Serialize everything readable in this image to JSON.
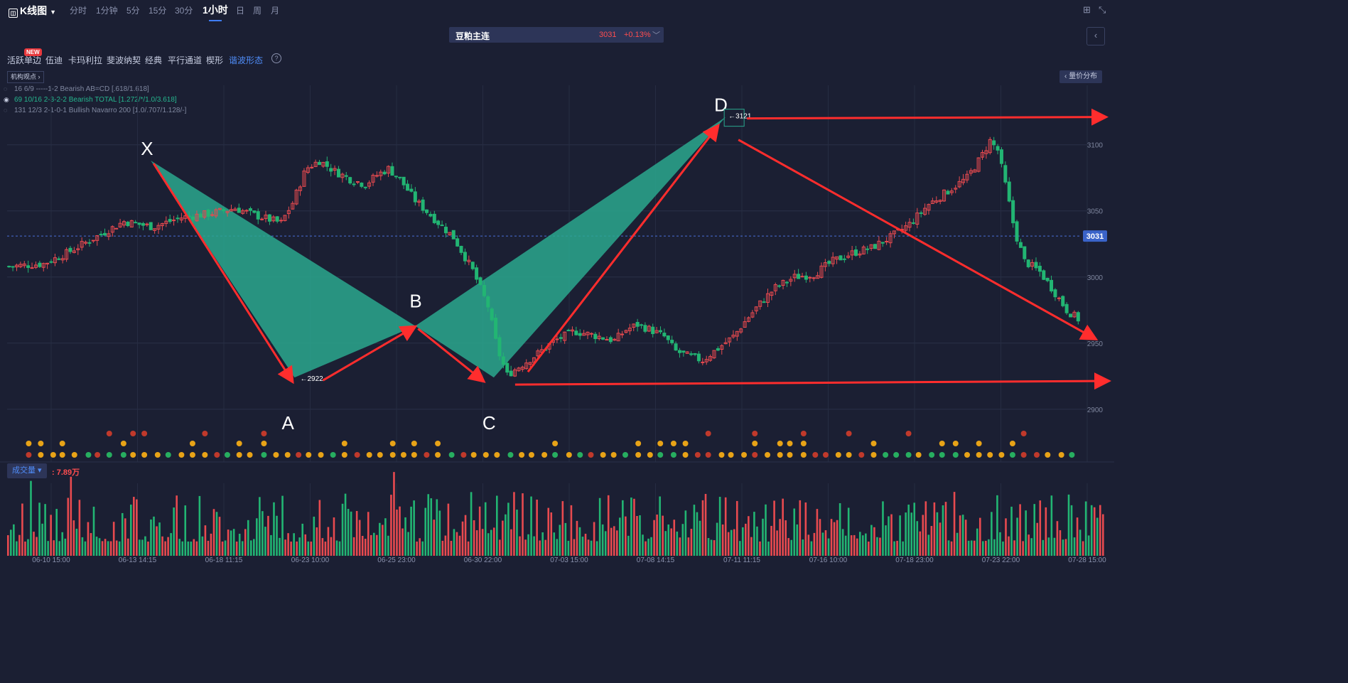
{
  "toolbar": {
    "title": "K线图",
    "timeframes": [
      "分时",
      "1分钟",
      "5分",
      "15分",
      "30分",
      "1小时",
      "日",
      "周",
      "月"
    ]
  },
  "symbol": {
    "name": "豆粕主连",
    "price": "3031",
    "change": "+0.13%"
  },
  "tools": {
    "items": [
      "活跃单边",
      "伍迪",
      "卡玛利拉",
      "斐波纳契",
      "经典",
      "平行通道",
      "楔形",
      "谐波形态"
    ],
    "new_badge": "NEW",
    "help": "?"
  },
  "jigou": "机构观点",
  "price_distribution": "量价分布",
  "patterns": [
    "16 6/9 -----1-2 Bearish AB=CD [.618/1.618]",
    "69 10/16 2-3-2-2 Bearish TOTAL [1.272/*/1.0/3.618]",
    "131 12/3 2-1-0-1 Bullish Navarro 200 [1.0/.707/1.128/-]"
  ],
  "volume": {
    "label": "成交量",
    "value": ": 7.89万"
  },
  "colors": {
    "up": "#e84a4f",
    "down": "#22b573",
    "pattern_fill": "#2aa88e",
    "arrow": "#ff2d2d",
    "background": "#1b1f33"
  },
  "chart_data": {
    "type": "candlestick",
    "xlabels": [
      "06-10 15:00",
      "06-13 14:15",
      "06-18 11:15",
      "06-23 10:00",
      "06-25 23:00",
      "06-30 22:00",
      "07-03 15:00",
      "07-08 14:15",
      "07-11 11:15",
      "07-16 10:00",
      "07-18 23:00",
      "07-23 22:00",
      "07-28 15:00"
    ],
    "y_ticks": [
      2900,
      2950,
      3000,
      3050,
      3100
    ],
    "ylim": [
      2887,
      3145
    ],
    "current_price": 3031,
    "close_path": [
      [
        0,
        3008
      ],
      [
        18,
        3010
      ],
      [
        30,
        3018
      ],
      [
        45,
        3030
      ],
      [
        60,
        3042
      ],
      [
        75,
        3038
      ],
      [
        90,
        3045
      ],
      [
        105,
        3048
      ],
      [
        118,
        3052
      ],
      [
        130,
        3046
      ],
      [
        142,
        3041
      ],
      [
        148,
        3056
      ],
      [
        155,
        3082
      ],
      [
        162,
        3088
      ],
      [
        170,
        3080
      ],
      [
        178,
        3074
      ],
      [
        186,
        3070
      ],
      [
        192,
        3077
      ],
      [
        198,
        3082
      ],
      [
        204,
        3074
      ],
      [
        212,
        3058
      ],
      [
        222,
        3044
      ],
      [
        232,
        3030
      ],
      [
        242,
        3005
      ],
      [
        250,
        2978
      ],
      [
        255,
        2945
      ],
      [
        260,
        2926
      ],
      [
        266,
        2932
      ],
      [
        275,
        2941
      ],
      [
        285,
        2952
      ],
      [
        295,
        2959
      ],
      [
        305,
        2956
      ],
      [
        316,
        2952
      ],
      [
        322,
        2960
      ],
      [
        328,
        2964
      ],
      [
        335,
        2960
      ],
      [
        342,
        2955
      ],
      [
        348,
        2944
      ],
      [
        355,
        2940
      ],
      [
        362,
        2937
      ],
      [
        370,
        2946
      ],
      [
        378,
        2955
      ],
      [
        385,
        2968
      ],
      [
        392,
        2980
      ],
      [
        400,
        2992
      ],
      [
        410,
        3000
      ],
      [
        420,
        3002
      ],
      [
        430,
        3012
      ],
      [
        440,
        3018
      ],
      [
        450,
        3022
      ],
      [
        460,
        3030
      ],
      [
        470,
        3040
      ],
      [
        480,
        3055
      ],
      [
        490,
        3065
      ],
      [
        500,
        3075
      ],
      [
        507,
        3090
      ],
      [
        512,
        3103
      ],
      [
        516,
        3096
      ],
      [
        520,
        3070
      ],
      [
        525,
        3034
      ],
      [
        530,
        3012
      ],
      [
        538,
        3004
      ],
      [
        545,
        2990
      ],
      [
        552,
        2975
      ],
      [
        560,
        2966
      ]
    ],
    "pattern": {
      "points": {
        "X": [
          75,
          3088
        ],
        "A": [
          150,
          2924
        ],
        "B": [
          213,
          2963
        ],
        "C": [
          254,
          2924
        ],
        "D": [
          375,
          3121
        ]
      },
      "labels": [
        "X",
        "A",
        "B",
        "C",
        "D"
      ],
      "annotations": {
        "A": "2922",
        "D": "3121"
      }
    },
    "volume_bars": 384
  }
}
